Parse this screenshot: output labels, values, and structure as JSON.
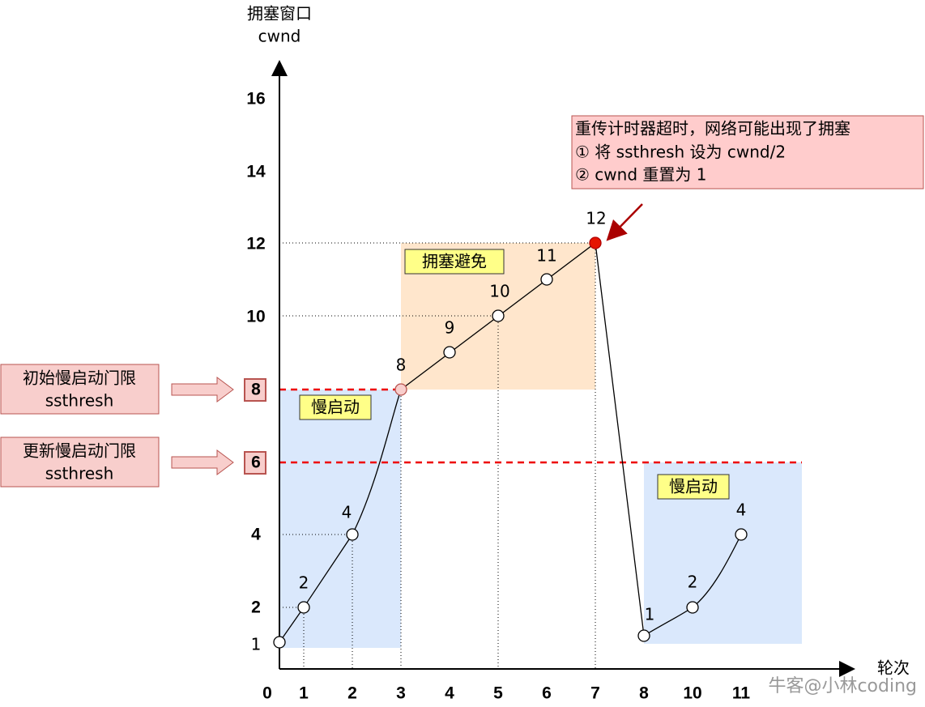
{
  "axes": {
    "y_title": "拥塞窗口",
    "y_unit": "cwnd",
    "x_title": "轮次",
    "y_ticks": [
      "16",
      "14",
      "12",
      "10",
      "8",
      "6",
      "4",
      "2",
      "1"
    ],
    "x_ticks": [
      "0",
      "1",
      "2",
      "3",
      "4",
      "5",
      "6",
      "7",
      "8",
      "10",
      "11"
    ]
  },
  "point_labels": [
    "2",
    "4",
    "8",
    "9",
    "10",
    "11",
    "12",
    "1",
    "2",
    "4"
  ],
  "regions": [
    "慢启动",
    "拥塞避免",
    "慢启动"
  ],
  "callouts": {
    "initial": [
      "初始慢启动门限",
      "ssthresh"
    ],
    "updated": [
      "更新慢启动门限",
      "ssthresh"
    ],
    "timeout": [
      "重传计时器超时，网络可能出现了拥塞",
      "① 将 ssthresh 设为 cwnd/2",
      "② cwnd 重置为 1"
    ]
  },
  "watermark": "牛客@小林coding"
}
